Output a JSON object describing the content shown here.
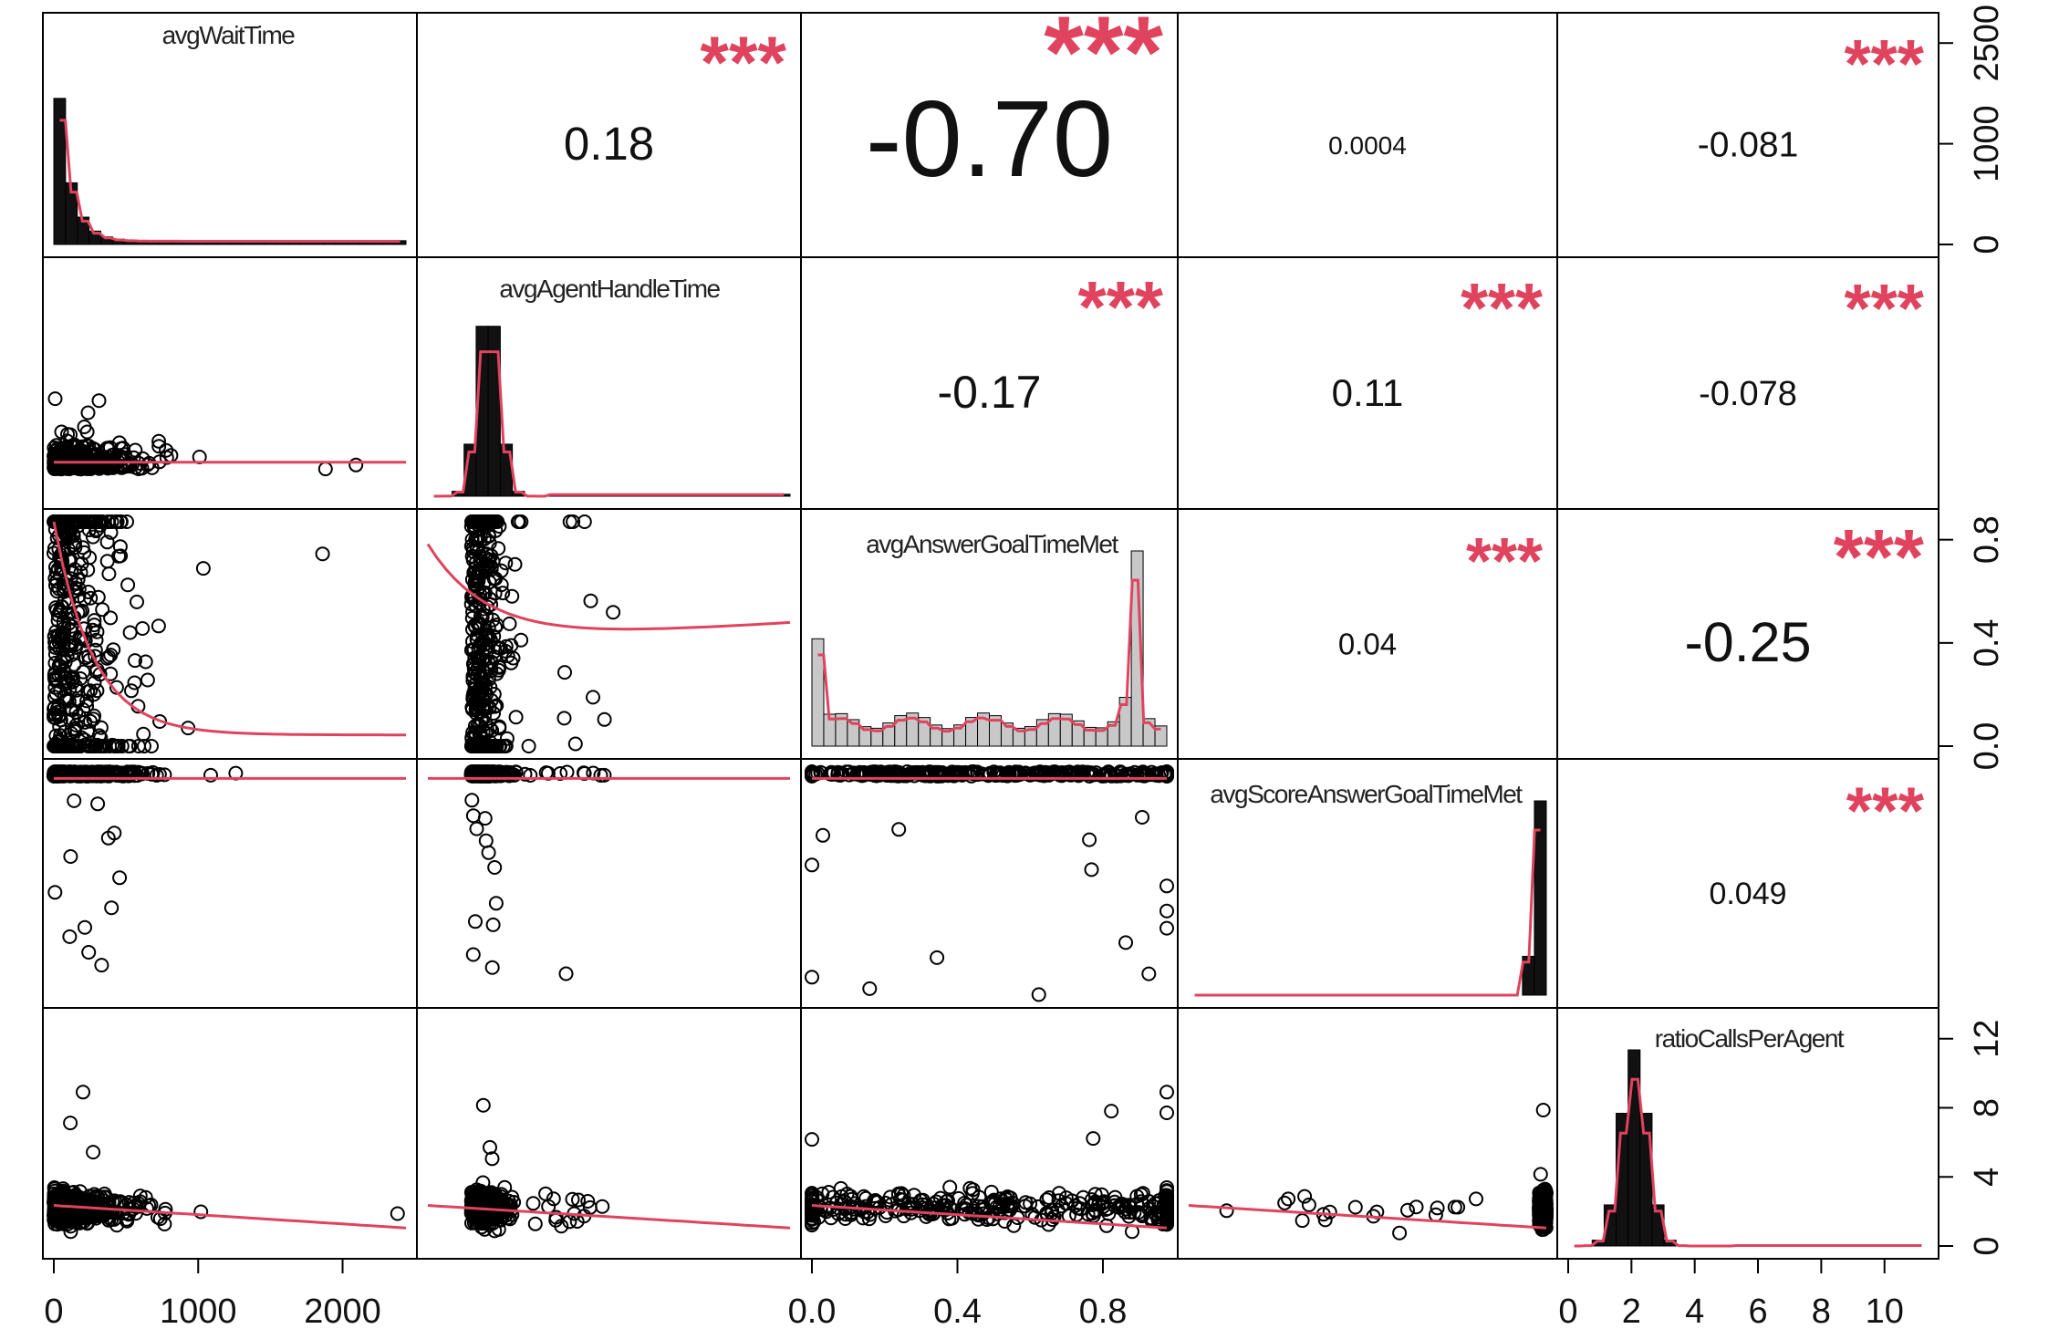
{
  "chart_data": {
    "type": "scatter",
    "subtype": "correlation-scatterplot-matrix",
    "variables": [
      "avgWaitTime",
      "avgAgentHandleTime",
      "avgAnswerGoalTimeMet",
      "avgScoreAnswerGoalTimeMet",
      "ratioCallsPerAgent"
    ],
    "correlations": [
      {
        "row": 0,
        "col": 1,
        "value": "0.18",
        "stars": "***"
      },
      {
        "row": 0,
        "col": 2,
        "value": "-0.70",
        "stars": "***"
      },
      {
        "row": 0,
        "col": 3,
        "value": "0.0004",
        "stars": ""
      },
      {
        "row": 0,
        "col": 4,
        "value": "-0.081",
        "stars": "***"
      },
      {
        "row": 1,
        "col": 2,
        "value": "-0.17",
        "stars": "***"
      },
      {
        "row": 1,
        "col": 3,
        "value": "0.11",
        "stars": "***"
      },
      {
        "row": 1,
        "col": 4,
        "value": "-0.078",
        "stars": "***"
      },
      {
        "row": 2,
        "col": 3,
        "value": "0.04",
        "stars": "***"
      },
      {
        "row": 2,
        "col": 4,
        "value": "-0.25",
        "stars": "***"
      },
      {
        "row": 3,
        "col": 4,
        "value": "0.049",
        "stars": "***"
      }
    ],
    "axes": {
      "bottom": [
        {
          "col": 0,
          "ticks": [
            "0",
            "1000",
            "2000"
          ]
        },
        {
          "col": 2,
          "ticks": [
            "0.0",
            "0.4",
            "0.8"
          ]
        },
        {
          "col": 4,
          "ticks": [
            "0",
            "2",
            "4",
            "6",
            "8",
            "10"
          ]
        }
      ],
      "right": [
        {
          "row": 0,
          "ticks": [
            "0",
            "1000",
            "2500"
          ]
        },
        {
          "row": 2,
          "ticks": [
            "0.0",
            "0.4",
            "0.8"
          ]
        },
        {
          "row": 4,
          "ticks": [
            "0",
            "4",
            "8",
            "12"
          ]
        }
      ]
    },
    "colors": {
      "smooth_line": "#e0435e",
      "stars": "#e0435e",
      "points": "#000000",
      "hist_fill": "#c8c8c8"
    },
    "grid": false,
    "legend": "none"
  }
}
